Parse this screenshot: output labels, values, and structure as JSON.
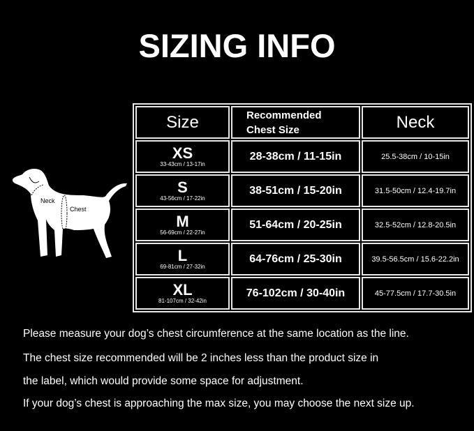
{
  "title": "SIZING INFO",
  "table": {
    "headers": {
      "size": "Size",
      "chest_line1": "Recommended",
      "chest_line2": "Chest Size",
      "neck": "Neck"
    },
    "rows": [
      {
        "size": "XS",
        "product": "33-43cm / 13-17in",
        "chest": "28-38cm / 11-15in",
        "neck": "25.5-38cm / 10-15in"
      },
      {
        "size": "S",
        "product": "43-56cm / 17-22in",
        "chest": "38-51cm / 15-20in",
        "neck": "31.5-50cm / 12.4-19.7in"
      },
      {
        "size": "M",
        "product": "56-69cm / 22-27in",
        "chest": "51-64cm / 20-25in",
        "neck": "32.5-52cm / 12.8-20.5in"
      },
      {
        "size": "L",
        "product": "69-81cm / 27-32in",
        "chest": "64-76cm / 25-30in",
        "neck": "39.5-56.5cm / 15.6-22.2in"
      },
      {
        "size": "XL",
        "product": "81-107cm / 32-42in",
        "chest": "76-102cm / 30-40in",
        "neck": "45-77.5cm / 17.7-30.5in"
      }
    ]
  },
  "dog": {
    "neck_label": "Neck",
    "chest_label": "Chest"
  },
  "notes": [
    "Please measure your dog’s chest circumference at the same location as the line.",
    "The chest size recommended will be 2 inches less than the product size in",
    "the label, which would provide some space for adjustment.",
    "If your dog’s chest is approaching the max size, you may choose the next size up."
  ]
}
